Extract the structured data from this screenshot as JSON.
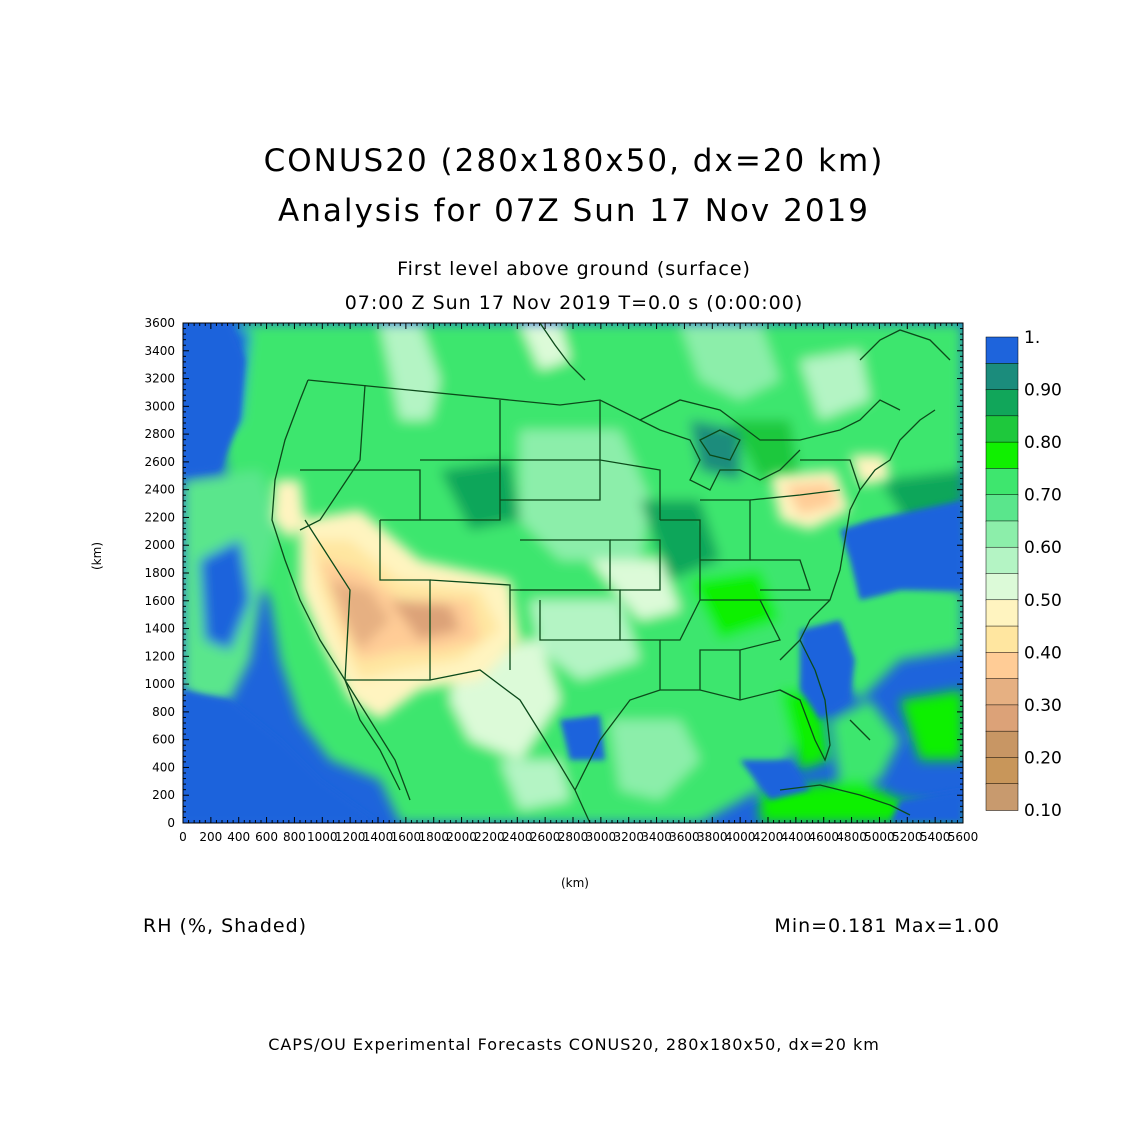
{
  "header": {
    "title_line1": "CONUS20 (280x180x50, dx=20 km)",
    "title_line2": "Analysis for 07Z Sun 17 Nov 2019",
    "subtitle_line1": "First level above ground (surface)",
    "subtitle_line2": "07:00 Z Sun 17 Nov 2019    T=0.0 s (0:00:00)"
  },
  "axes": {
    "xlabel": "(km)",
    "ylabel": "(km)",
    "xticks": [
      "0",
      "200",
      "400",
      "600",
      "800",
      "1000",
      "1200",
      "1400",
      "1600",
      "1800",
      "2000",
      "2200",
      "2400",
      "2600",
      "2800",
      "3000",
      "3200",
      "3400",
      "3600",
      "3800",
      "4000",
      "4200",
      "4400",
      "4600",
      "4800",
      "5000",
      "5200",
      "5400",
      "5600"
    ],
    "yticks": [
      "0",
      "200",
      "400",
      "600",
      "800",
      "1000",
      "1200",
      "1400",
      "1600",
      "1800",
      "2000",
      "2200",
      "2400",
      "2600",
      "2800",
      "3000",
      "3200",
      "3400",
      "3600"
    ],
    "xlim": [
      0,
      5600
    ],
    "ylim": [
      0,
      3600
    ]
  },
  "colorbar": {
    "labels": [
      "1.",
      "0.90",
      "0.80",
      "0.70",
      "0.60",
      "0.50",
      "0.40",
      "0.30",
      "0.20",
      "0.10"
    ],
    "colors": [
      "#1e64dc",
      "#1b8c7c",
      "#11a65a",
      "#1ec83c",
      "#10f000",
      "#3ee66e",
      "#5ae68c",
      "#8ceeaa",
      "#b4f4c4",
      "#dcfad8",
      "#fff4c0",
      "#ffe6a0",
      "#ffcc96",
      "#e6b082",
      "#dca278",
      "#c89664",
      "#c8965a",
      "#c89a6e"
    ]
  },
  "footer": {
    "field_label": "RH (%, Shaded)",
    "minmax": "Min=0.181 Max=1.00",
    "credit": "CAPS/OU Experimental Forecasts  CONUS20, 280x180x50, dx=20 km"
  },
  "map": {
    "projection_extent_km": [
      5600,
      3600
    ],
    "land_color": "#3ee66e",
    "ocean_color": "#1e64dc",
    "boundary_color": "#0b4a1a"
  }
}
